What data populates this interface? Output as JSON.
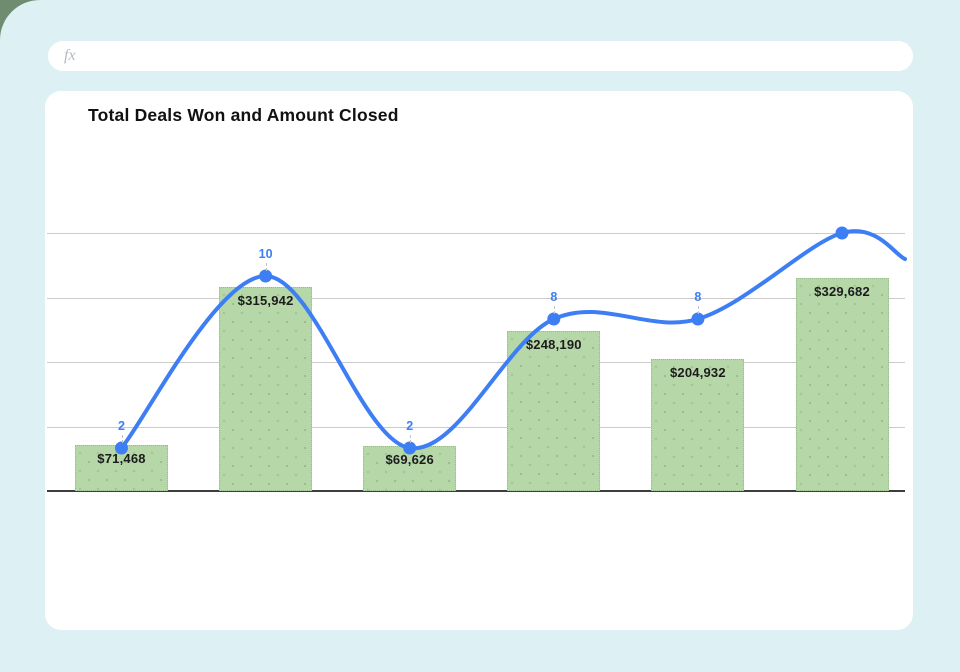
{
  "app": {
    "background_color": "#ddf0f3",
    "corner_accent_color": "#6f8c70"
  },
  "formula_bar": {
    "icon_label": "fx",
    "value": ""
  },
  "chart": {
    "title": "Total Deals Won and Amount Closed"
  },
  "chart_data": {
    "type": "combo",
    "title": "Total Deals Won and Amount Closed",
    "x_axis_labels_visible": false,
    "legend_position": "none",
    "bar_series": {
      "name": "Amount Closed",
      "values": [
        71468,
        315942,
        69626,
        248190,
        204932,
        329682
      ],
      "data_labels": [
        "$71,468",
        "$315,942",
        "$69,626",
        "$248,190",
        "$204,932",
        "$329,682"
      ],
      "color": "#b6d7a8",
      "axis": {
        "min": 0,
        "max": 400000,
        "labels_visible": false
      }
    },
    "line_series": {
      "name": "Total Deals Won",
      "values": [
        2,
        10,
        2,
        8,
        8,
        12
      ],
      "data_labels": [
        "2",
        "10",
        "2",
        "8",
        "8",
        ""
      ],
      "color": "#3d7ef5",
      "label_color": "#3d7ef5",
      "axis": {
        "min": 0,
        "max": 12,
        "labels_visible": false
      }
    },
    "grid": {
      "horizontal_divisions": 4,
      "color": "#cbcbcb",
      "axis_color": "#3d3d3d"
    }
  }
}
